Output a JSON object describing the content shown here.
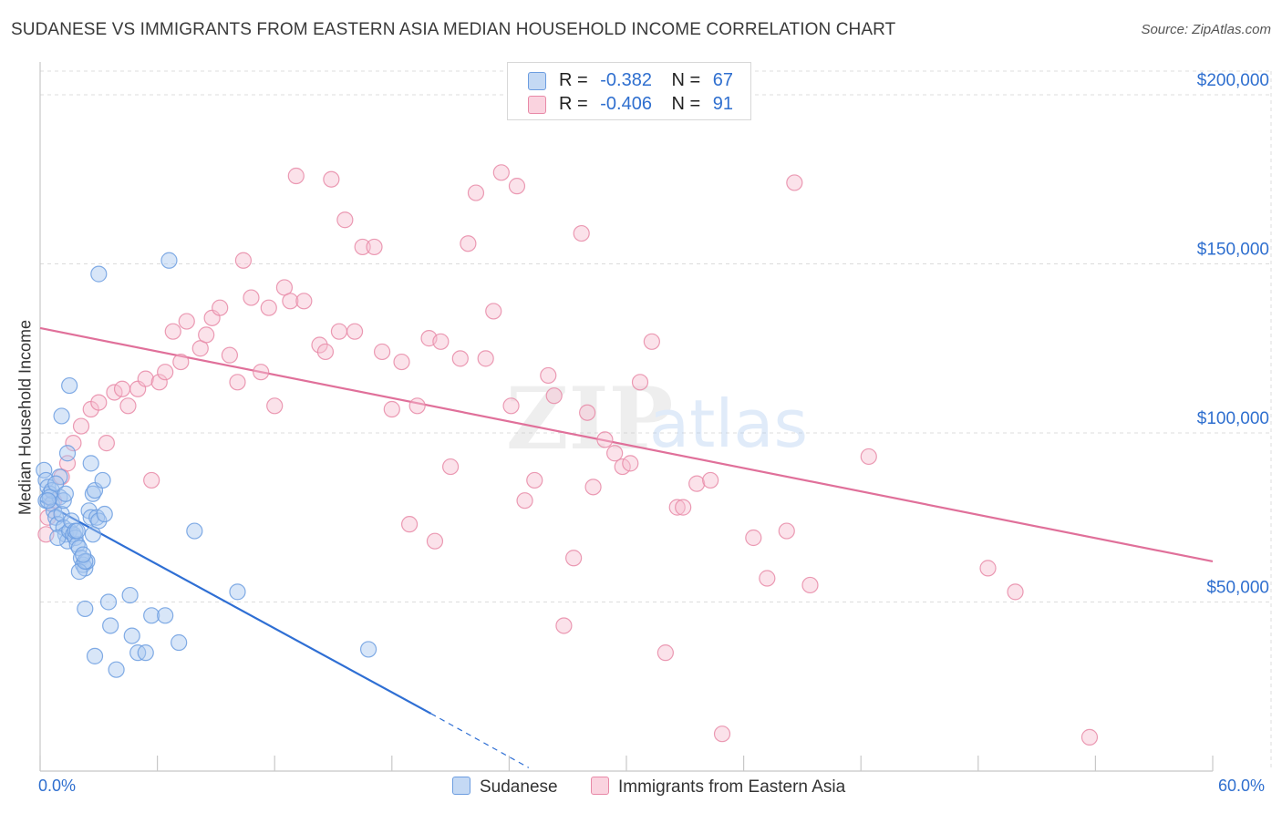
{
  "title": "SUDANESE VS IMMIGRANTS FROM EASTERN ASIA MEDIAN HOUSEHOLD INCOME CORRELATION CHART",
  "source": "Source: ZipAtlas.com",
  "watermark": {
    "zip": "ZIP",
    "atlas": "atlas"
  },
  "legend": {
    "rows": [
      {
        "r_label": "R =",
        "r_value": "-0.382",
        "n_label": "N =",
        "n_value": "67",
        "color": "#a9c8f0",
        "border": "#6c9de0"
      },
      {
        "r_label": "R =",
        "r_value": "-0.406",
        "n_label": "N =",
        "n_value": "91",
        "color": "#f6bfd0",
        "border": "#e889a7"
      }
    ]
  },
  "bottom_legend": {
    "series1": "Sudanese",
    "series2": "Immigrants from Eastern Asia"
  },
  "x_axis": {
    "min_label": "0.0%",
    "max_label": "60.0%"
  },
  "chart_data": {
    "type": "scatter",
    "title": "SUDANESE VS IMMIGRANTS FROM EASTERN ASIA MEDIAN HOUSEHOLD INCOME CORRELATION CHART",
    "xlabel": "",
    "ylabel": "Median Household Income",
    "xlim": [
      0,
      60
    ],
    "ylim": [
      0,
      207000
    ],
    "y_ticks": [
      50000,
      100000,
      150000,
      200000
    ],
    "y_tick_labels": [
      "$50,000",
      "$100,000",
      "$150,000",
      "$200,000"
    ],
    "x_tick_labels": [
      "0.0%",
      "60.0%"
    ],
    "grid": "horizontal dashed",
    "legend_position": "top-center",
    "series": [
      {
        "name": "Sudanese",
        "color": "#6c9de0",
        "fill": "#a9c8f0",
        "trend": {
          "x": [
            0,
            20
          ],
          "y": [
            80000,
            17000
          ],
          "dashed_to": [
            25,
            1000
          ]
        },
        "points": [
          [
            0.2,
            89000
          ],
          [
            0.3,
            86000
          ],
          [
            0.4,
            84000
          ],
          [
            0.5,
            82000
          ],
          [
            0.3,
            80000
          ],
          [
            0.6,
            79000
          ],
          [
            0.7,
            77000
          ],
          [
            0.8,
            75000
          ],
          [
            0.9,
            73000
          ],
          [
            1.0,
            81000
          ],
          [
            1.1,
            76000
          ],
          [
            1.2,
            72000
          ],
          [
            1.3,
            70000
          ],
          [
            1.4,
            68000
          ],
          [
            1.0,
            87000
          ],
          [
            0.6,
            83000
          ],
          [
            0.9,
            69000
          ],
          [
            1.5,
            71000
          ],
          [
            1.6,
            74000
          ],
          [
            1.7,
            70000
          ],
          [
            1.8,
            69000
          ],
          [
            1.9,
            67000
          ],
          [
            2.0,
            66000
          ],
          [
            2.1,
            63000
          ],
          [
            2.2,
            61000
          ],
          [
            2.3,
            60000
          ],
          [
            2.4,
            62000
          ],
          [
            2.5,
            77000
          ],
          [
            2.6,
            75000
          ],
          [
            2.7,
            82000
          ],
          [
            2.8,
            83000
          ],
          [
            2.9,
            75000
          ],
          [
            3.0,
            74000
          ],
          [
            3.2,
            86000
          ],
          [
            3.3,
            76000
          ],
          [
            0.5,
            81000
          ],
          [
            1.1,
            105000
          ],
          [
            1.4,
            94000
          ],
          [
            1.5,
            114000
          ],
          [
            2.6,
            91000
          ],
          [
            3.0,
            147000
          ],
          [
            6.6,
            151000
          ],
          [
            2.0,
            59000
          ],
          [
            2.3,
            62000
          ],
          [
            2.3,
            48000
          ],
          [
            3.5,
            50000
          ],
          [
            3.6,
            43000
          ],
          [
            2.8,
            34000
          ],
          [
            3.9,
            30000
          ],
          [
            4.7,
            40000
          ],
          [
            5.0,
            35000
          ],
          [
            5.4,
            35000
          ],
          [
            5.7,
            46000
          ],
          [
            4.6,
            52000
          ],
          [
            6.4,
            46000
          ],
          [
            7.1,
            38000
          ],
          [
            7.9,
            71000
          ],
          [
            10.1,
            53000
          ],
          [
            16.8,
            36000
          ],
          [
            1.2,
            80000
          ],
          [
            1.8,
            71000
          ],
          [
            2.2,
            64000
          ],
          [
            0.8,
            85000
          ],
          [
            0.4,
            80000
          ],
          [
            1.3,
            82000
          ],
          [
            1.9,
            71000
          ],
          [
            2.7,
            70000
          ]
        ]
      },
      {
        "name": "Immigrants from Eastern Asia",
        "color": "#e889a7",
        "fill": "#f6bfd0",
        "trend": {
          "x": [
            0,
            60
          ],
          "y": [
            131000,
            62000
          ]
        },
        "points": [
          [
            0.3,
            70000
          ],
          [
            0.4,
            75000
          ],
          [
            0.7,
            80000
          ],
          [
            1.1,
            87000
          ],
          [
            1.4,
            91000
          ],
          [
            1.7,
            97000
          ],
          [
            2.1,
            102000
          ],
          [
            2.6,
            107000
          ],
          [
            3.0,
            109000
          ],
          [
            3.4,
            97000
          ],
          [
            3.8,
            112000
          ],
          [
            4.2,
            113000
          ],
          [
            4.5,
            108000
          ],
          [
            5.0,
            113000
          ],
          [
            5.4,
            116000
          ],
          [
            5.7,
            86000
          ],
          [
            6.1,
            115000
          ],
          [
            6.4,
            118000
          ],
          [
            6.8,
            130000
          ],
          [
            7.2,
            121000
          ],
          [
            7.5,
            133000
          ],
          [
            8.2,
            125000
          ],
          [
            8.5,
            129000
          ],
          [
            8.8,
            134000
          ],
          [
            9.2,
            137000
          ],
          [
            9.7,
            123000
          ],
          [
            10.1,
            115000
          ],
          [
            10.4,
            151000
          ],
          [
            10.8,
            140000
          ],
          [
            11.3,
            118000
          ],
          [
            11.7,
            137000
          ],
          [
            12.0,
            108000
          ],
          [
            12.5,
            143000
          ],
          [
            12.8,
            139000
          ],
          [
            13.5,
            139000
          ],
          [
            13.1,
            176000
          ],
          [
            14.3,
            126000
          ],
          [
            14.6,
            124000
          ],
          [
            14.9,
            175000
          ],
          [
            15.3,
            130000
          ],
          [
            15.6,
            163000
          ],
          [
            16.1,
            130000
          ],
          [
            16.5,
            155000
          ],
          [
            17.1,
            155000
          ],
          [
            17.5,
            124000
          ],
          [
            18.0,
            107000
          ],
          [
            18.5,
            121000
          ],
          [
            18.9,
            73000
          ],
          [
            19.3,
            108000
          ],
          [
            19.9,
            128000
          ],
          [
            20.2,
            68000
          ],
          [
            20.5,
            127000
          ],
          [
            21.0,
            90000
          ],
          [
            21.5,
            122000
          ],
          [
            21.9,
            156000
          ],
          [
            22.3,
            171000
          ],
          [
            22.8,
            122000
          ],
          [
            23.2,
            136000
          ],
          [
            23.6,
            177000
          ],
          [
            24.1,
            108000
          ],
          [
            24.4,
            173000
          ],
          [
            24.8,
            80000
          ],
          [
            25.3,
            86000
          ],
          [
            26.0,
            117000
          ],
          [
            26.3,
            111000
          ],
          [
            26.8,
            43000
          ],
          [
            27.3,
            63000
          ],
          [
            27.7,
            159000
          ],
          [
            28.0,
            106000
          ],
          [
            28.3,
            84000
          ],
          [
            28.9,
            98000
          ],
          [
            29.4,
            94000
          ],
          [
            29.8,
            90000
          ],
          [
            30.2,
            91000
          ],
          [
            30.7,
            115000
          ],
          [
            31.3,
            127000
          ],
          [
            32.0,
            35000
          ],
          [
            32.6,
            78000
          ],
          [
            32.9,
            78000
          ],
          [
            33.6,
            85000
          ],
          [
            34.3,
            86000
          ],
          [
            34.9,
            11000
          ],
          [
            36.5,
            69000
          ],
          [
            37.2,
            57000
          ],
          [
            38.2,
            71000
          ],
          [
            38.6,
            174000
          ],
          [
            39.4,
            55000
          ],
          [
            42.4,
            93000
          ],
          [
            48.5,
            60000
          ],
          [
            49.9,
            53000
          ],
          [
            53.7,
            10000
          ]
        ]
      }
    ]
  }
}
